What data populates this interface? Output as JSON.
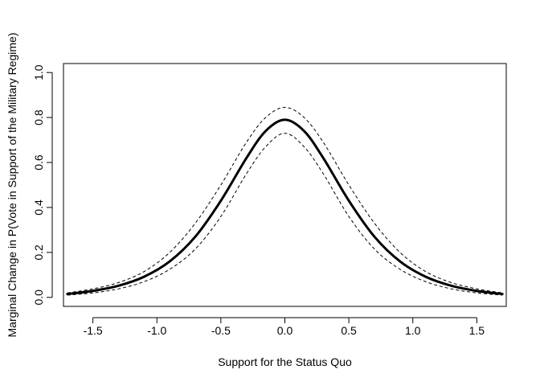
{
  "chart_data": {
    "type": "line",
    "title": "",
    "xlabel": "Support for the Status Quo",
    "ylabel": "Marginal Change in P(Vote in Support of the Military Regime)",
    "xlim": [
      -1.73,
      1.73
    ],
    "ylim": [
      0.0,
      1.0
    ],
    "grid": false,
    "legend": "none",
    "x_ticks": [
      -1.5,
      -1.0,
      -0.5,
      0.0,
      0.5,
      1.0,
      1.5
    ],
    "x_tick_labels": [
      "-1.5",
      "-1.0",
      "-0.5",
      "0.0",
      "0.5",
      "1.0",
      "1.5"
    ],
    "y_ticks": [
      0.0,
      0.2,
      0.4,
      0.6,
      0.8,
      1.0
    ],
    "y_tick_labels": [
      "0.0",
      "0.2",
      "0.4",
      "0.6",
      "0.8",
      "1.0"
    ],
    "x": [
      -1.7,
      -1.5,
      -1.3,
      -1.1,
      -0.9,
      -0.7,
      -0.5,
      -0.3,
      -0.15,
      0.0,
      0.15,
      0.3,
      0.5,
      0.7,
      0.9,
      1.1,
      1.3,
      1.5,
      1.7
    ],
    "series": [
      {
        "style": "solid",
        "color": "#000000",
        "values": [
          0.015,
          0.029,
          0.052,
          0.092,
          0.16,
          0.27,
          0.43,
          0.62,
          0.74,
          0.79,
          0.74,
          0.62,
          0.43,
          0.27,
          0.16,
          0.092,
          0.052,
          0.029,
          0.015
        ]
      },
      {
        "style": "dashed",
        "color": "#000000",
        "values": [
          0.02,
          0.038,
          0.066,
          0.115,
          0.2,
          0.33,
          0.5,
          0.69,
          0.8,
          0.845,
          0.8,
          0.69,
          0.5,
          0.33,
          0.2,
          0.115,
          0.066,
          0.038,
          0.02
        ]
      },
      {
        "style": "dashed",
        "color": "#000000",
        "values": [
          0.01,
          0.02,
          0.038,
          0.07,
          0.125,
          0.215,
          0.36,
          0.55,
          0.67,
          0.73,
          0.67,
          0.55,
          0.36,
          0.215,
          0.125,
          0.07,
          0.038,
          0.02,
          0.01
        ]
      }
    ]
  }
}
